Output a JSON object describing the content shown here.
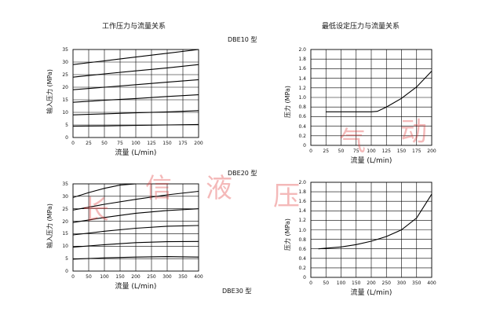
{
  "headers": {
    "left_title": "工作压力与流量关系",
    "right_title": "最低设定压力与流量关系"
  },
  "model_labels": [
    "DBE10 型",
    "DBE20 型",
    "DBE30 型"
  ],
  "watermark": [
    "长",
    "信",
    "液",
    "压",
    "气",
    "动"
  ],
  "chart_data": [
    {
      "type": "line",
      "xlabel": "流量 (L/min)",
      "ylabel": "输入压力 (MPa)",
      "xlim": [
        0,
        200
      ],
      "ylim": [
        0,
        35
      ],
      "xticks": [
        "0",
        "25",
        "50",
        "75",
        "100",
        "125",
        "150",
        "175",
        "200"
      ],
      "yticks": [
        "0",
        "5",
        "10",
        "15",
        "20",
        "25",
        "30",
        "35"
      ],
      "grid": true,
      "series": [
        {
          "x": [
            0,
            50,
            100,
            150,
            200
          ],
          "y": [
            4.5,
            4.6,
            4.8,
            5.0,
            5.2
          ]
        },
        {
          "x": [
            0,
            50,
            100,
            150,
            200
          ],
          "y": [
            9.0,
            9.4,
            9.8,
            10.2,
            10.7
          ]
        },
        {
          "x": [
            0,
            50,
            100,
            150,
            200
          ],
          "y": [
            14.0,
            14.8,
            15.5,
            16.3,
            17.0
          ]
        },
        {
          "x": [
            0,
            50,
            100,
            150,
            200
          ],
          "y": [
            19.0,
            20.0,
            21.0,
            22.0,
            23.0
          ]
        },
        {
          "x": [
            0,
            50,
            100,
            150,
            200
          ],
          "y": [
            24.0,
            25.3,
            26.5,
            27.7,
            29.0
          ]
        },
        {
          "x": [
            0,
            50,
            100,
            150,
            200
          ],
          "y": [
            29.0,
            30.5,
            32.0,
            33.5,
            35.0
          ]
        }
      ]
    },
    {
      "type": "line",
      "xlabel": "流量 (L/min)",
      "ylabel": "压力 (MPa)",
      "xlim": [
        0,
        200
      ],
      "ylim": [
        0,
        2.0
      ],
      "xticks": [
        "0",
        "25",
        "50",
        "75",
        "100",
        "125",
        "150",
        "175",
        "200"
      ],
      "yticks": [
        "0",
        "0.2",
        "0.4",
        "0.6",
        "0.8",
        "1.0",
        "1.2",
        "1.4",
        "1.6",
        "1.8",
        "2.0"
      ],
      "grid": true,
      "series": [
        {
          "x": [
            25,
            50,
            75,
            100,
            110,
            125,
            150,
            175,
            200
          ],
          "y": [
            0.7,
            0.7,
            0.7,
            0.7,
            0.71,
            0.8,
            0.98,
            1.22,
            1.55
          ]
        }
      ]
    },
    {
      "type": "line",
      "xlabel": "流量 (L/min)",
      "ylabel": "输入压力 (MPa)",
      "xlim": [
        0,
        400
      ],
      "ylim": [
        0,
        35
      ],
      "xticks": [
        "0",
        "50",
        "100",
        "150",
        "200",
        "250",
        "300",
        "350",
        "400"
      ],
      "yticks": [
        "0",
        "5",
        "10",
        "15",
        "20",
        "25",
        "30",
        "35"
      ],
      "grid": true,
      "series": [
        {
          "x": [
            0,
            100,
            200,
            300,
            400
          ],
          "y": [
            4.8,
            5.3,
            5.6,
            5.8,
            5.6
          ]
        },
        {
          "x": [
            0,
            100,
            200,
            300,
            400
          ],
          "y": [
            9.6,
            10.6,
            11.4,
            11.8,
            11.9
          ]
        },
        {
          "x": [
            0,
            100,
            200,
            300,
            400
          ],
          "y": [
            14.5,
            16.0,
            17.2,
            18.0,
            18.3
          ]
        },
        {
          "x": [
            0,
            100,
            200,
            300,
            400
          ],
          "y": [
            19.5,
            21.5,
            23.2,
            24.3,
            25.0
          ]
        },
        {
          "x": [
            0,
            100,
            200,
            300,
            400
          ],
          "y": [
            24.5,
            26.8,
            28.8,
            30.6,
            32.0
          ]
        },
        {
          "x": [
            0,
            50,
            100,
            150,
            200
          ],
          "y": [
            29.5,
            31.5,
            33.2,
            34.5,
            35.5
          ]
        }
      ]
    },
    {
      "type": "line",
      "xlabel": "流量 (L/min)",
      "ylabel": "压力 (MPa)",
      "xlim": [
        0,
        400
      ],
      "ylim": [
        0,
        2.0
      ],
      "xticks": [
        "0",
        "50",
        "100",
        "150",
        "200",
        "250",
        "300",
        "350",
        "400"
      ],
      "yticks": [
        "0",
        "0.2",
        "0.4",
        "0.6",
        "0.8",
        "1.0",
        "1.2",
        "1.4",
        "1.6",
        "1.8",
        "2.0"
      ],
      "grid": true,
      "series": [
        {
          "x": [
            25,
            100,
            150,
            200,
            250,
            300,
            350,
            400
          ],
          "y": [
            0.6,
            0.64,
            0.69,
            0.76,
            0.86,
            1.0,
            1.25,
            1.75
          ]
        }
      ]
    }
  ]
}
